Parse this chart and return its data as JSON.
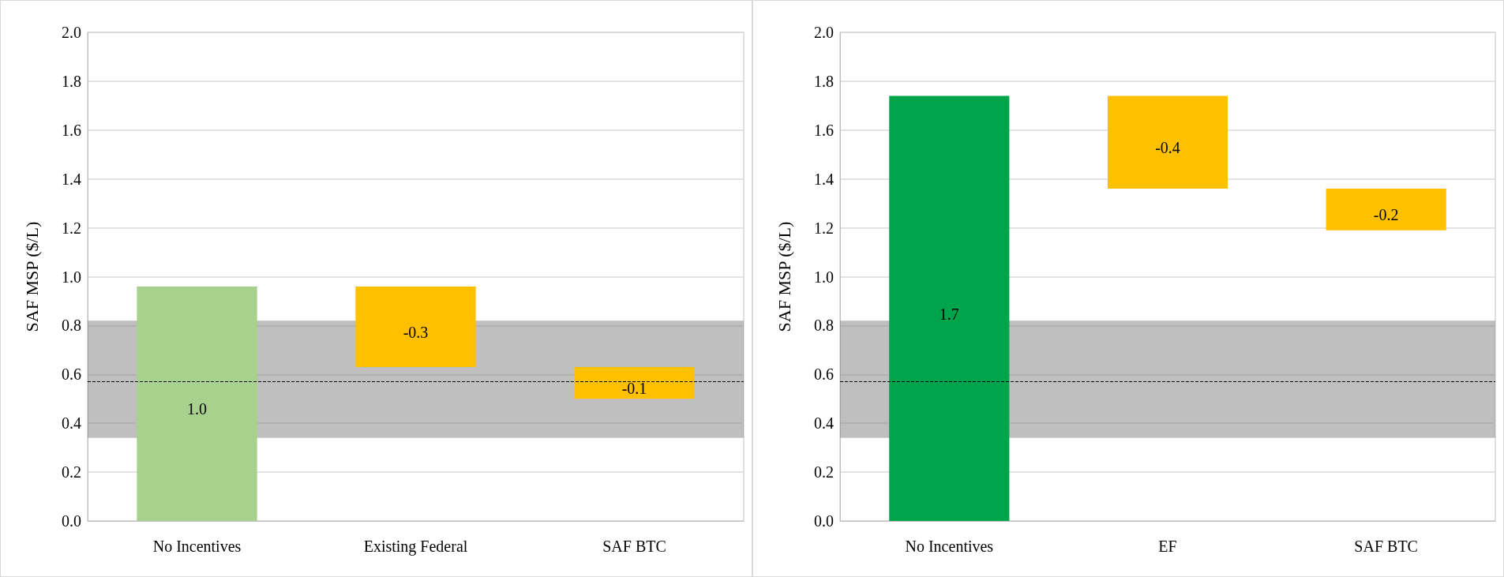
{
  "chart_data": [
    {
      "type": "bar",
      "ylabel": "SAF MSP ($/L)",
      "categories": [
        "No Incentives",
        "Existing Federal",
        "SAF BTC"
      ],
      "values": [
        0.96,
        -0.33,
        -0.13
      ],
      "base": [
        0,
        0.96,
        0.63
      ],
      "colors": [
        "#a9d18e",
        "#ffc000",
        "#ffc000"
      ],
      "value_labels": [
        "1.0",
        "-0.3",
        "-0.1"
      ],
      "ylim": [
        0,
        2
      ],
      "yticks": [
        {
          "value": 0,
          "label": "0.0"
        },
        0.2,
        0.4,
        0.6,
        0.8,
        {
          "value": 1,
          "label": "1.0"
        },
        1.2,
        1.4,
        1.6,
        1.8,
        {
          "value": 2,
          "label": "2.0"
        }
      ],
      "grid": "y",
      "bands": [
        {
          "axis": "y",
          "from": 0.34,
          "to": 0.82,
          "color": "#7f7f7f"
        }
      ],
      "ref_lines": [
        {
          "axis": "y",
          "value": 0.57,
          "color": "#000000",
          "line_style": "dashed"
        }
      ]
    },
    {
      "type": "bar",
      "ylabel": "SAF MSP ($/L)",
      "categories": [
        "No Incentives",
        "EF",
        "SAF BTC"
      ],
      "values": [
        1.74,
        -0.38,
        -0.17
      ],
      "base": [
        0,
        1.74,
        1.36
      ],
      "colors": [
        "#00a44a",
        "#ffc000",
        "#ffc000"
      ],
      "value_labels": [
        "1.7",
        "-0.4",
        "-0.2"
      ],
      "ylim": [
        0,
        2
      ],
      "yticks": [
        {
          "value": 0,
          "label": "0.0"
        },
        0.2,
        0.4,
        0.6,
        0.8,
        {
          "value": 1,
          "label": "1.0"
        },
        1.2,
        1.4,
        1.6,
        1.8,
        {
          "value": 2,
          "label": "2.0"
        }
      ],
      "grid": "y",
      "bands": [
        {
          "axis": "y",
          "from": 0.34,
          "to": 0.82,
          "color": "#7f7f7f"
        }
      ],
      "ref_lines": [
        {
          "axis": "y",
          "value": 0.57,
          "color": "#000000",
          "line_style": "dashed"
        }
      ]
    }
  ]
}
